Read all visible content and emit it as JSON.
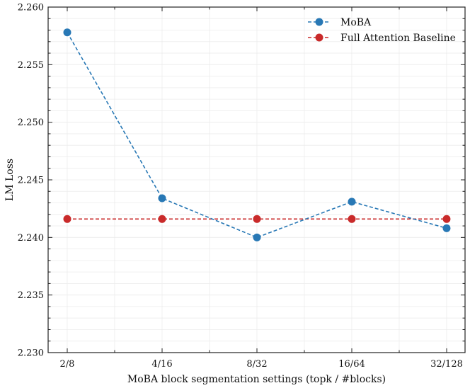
{
  "chart_data": {
    "type": "line",
    "title": "",
    "xlabel": "MoBA block segmentation settings (topk / #blocks)",
    "ylabel": "LM Loss",
    "categories": [
      "2/8",
      "4/16",
      "8/32",
      "16/64",
      "32/128"
    ],
    "ylim": [
      2.23,
      2.26
    ],
    "yticks": [
      "2.230",
      "2.235",
      "2.240",
      "2.245",
      "2.250",
      "2.255",
      "2.260"
    ],
    "ytick_values": [
      2.23,
      2.235,
      2.24,
      2.245,
      2.25,
      2.255,
      2.26
    ],
    "grid": true,
    "legend_position": "top-right",
    "series": [
      {
        "name": "MoBA",
        "color": "#2878b5",
        "linestyle": "dashed",
        "marker": "circle",
        "values": [
          2.2578,
          2.2434,
          2.24,
          2.2431,
          2.2408
        ]
      },
      {
        "name": "Full Attention Baseline",
        "color": "#c92a2a",
        "linestyle": "dashed",
        "marker": "circle",
        "values": [
          2.2416,
          2.2416,
          2.2416,
          2.2416,
          2.2416
        ]
      }
    ]
  }
}
